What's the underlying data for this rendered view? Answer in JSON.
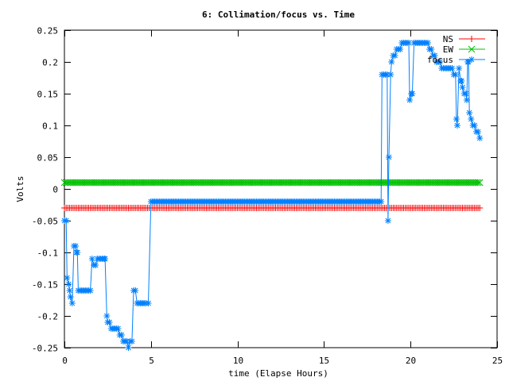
{
  "chart_data": {
    "type": "line",
    "title": "6: Collimation/focus vs. Time",
    "xlabel": "time (Elapse Hours)",
    "ylabel": "Volts",
    "xlim": [
      0,
      25
    ],
    "ylim": [
      -0.25,
      0.25
    ],
    "x_ticks": [
      "0",
      "5",
      "10",
      "15",
      "20",
      "25"
    ],
    "y_ticks": [
      "-0.25",
      "-0.2",
      "-0.15",
      "-0.1",
      "-0.05",
      "0",
      "0.05",
      "0.1",
      "0.15",
      "0.2",
      "0.25"
    ],
    "grid": false,
    "legend_position": "top-right",
    "series": [
      {
        "name": "NS",
        "color": "#ff0000",
        "marker": "plus",
        "constant": true,
        "x_range": [
          0,
          24
        ],
        "y": -0.03
      },
      {
        "name": "EW",
        "color": "#00c000",
        "marker": "cross",
        "constant": true,
        "x_range": [
          0,
          24
        ],
        "y": 0.01
      },
      {
        "name": "focus",
        "color": "#0080ff",
        "marker": "star",
        "points": [
          [
            0.0,
            -0.05
          ],
          [
            0.1,
            -0.05
          ],
          [
            0.15,
            -0.14
          ],
          [
            0.25,
            -0.15
          ],
          [
            0.3,
            -0.16
          ],
          [
            0.35,
            -0.17
          ],
          [
            0.45,
            -0.18
          ],
          [
            0.55,
            -0.09
          ],
          [
            0.65,
            -0.09
          ],
          [
            0.7,
            -0.1
          ],
          [
            0.75,
            -0.1
          ],
          [
            0.8,
            -0.16
          ],
          [
            0.9,
            -0.16
          ],
          [
            1.0,
            -0.16
          ],
          [
            1.1,
            -0.16
          ],
          [
            1.2,
            -0.16
          ],
          [
            1.3,
            -0.16
          ],
          [
            1.4,
            -0.16
          ],
          [
            1.5,
            -0.16
          ],
          [
            1.6,
            -0.11
          ],
          [
            1.7,
            -0.12
          ],
          [
            1.8,
            -0.12
          ],
          [
            1.9,
            -0.11
          ],
          [
            2.0,
            -0.11
          ],
          [
            2.1,
            -0.11
          ],
          [
            2.2,
            -0.11
          ],
          [
            2.3,
            -0.11
          ],
          [
            2.35,
            -0.11
          ],
          [
            2.45,
            -0.2
          ],
          [
            2.5,
            -0.21
          ],
          [
            2.6,
            -0.21
          ],
          [
            2.7,
            -0.22
          ],
          [
            2.8,
            -0.22
          ],
          [
            2.9,
            -0.22
          ],
          [
            3.0,
            -0.22
          ],
          [
            3.1,
            -0.22
          ],
          [
            3.2,
            -0.23
          ],
          [
            3.3,
            -0.23
          ],
          [
            3.4,
            -0.24
          ],
          [
            3.5,
            -0.24
          ],
          [
            3.6,
            -0.24
          ],
          [
            3.7,
            -0.25
          ],
          [
            3.8,
            -0.24
          ],
          [
            3.9,
            -0.24
          ],
          [
            4.0,
            -0.16
          ],
          [
            4.1,
            -0.16
          ],
          [
            4.2,
            -0.18
          ],
          [
            4.3,
            -0.18
          ],
          [
            4.4,
            -0.18
          ],
          [
            4.5,
            -0.18
          ],
          [
            4.6,
            -0.18
          ],
          [
            4.7,
            -0.18
          ],
          [
            4.85,
            -0.18
          ],
          [
            5.0,
            -0.02
          ],
          [
            18.3,
            -0.02
          ],
          [
            18.35,
            0.18
          ],
          [
            18.45,
            0.18
          ],
          [
            18.55,
            0.18
          ],
          [
            18.65,
            0.18
          ],
          [
            18.7,
            -0.05
          ],
          [
            18.75,
            0.05
          ],
          [
            18.85,
            0.18
          ],
          [
            18.9,
            0.2
          ],
          [
            19.0,
            0.21
          ],
          [
            19.1,
            0.21
          ],
          [
            19.2,
            0.22
          ],
          [
            19.3,
            0.22
          ],
          [
            19.4,
            0.22
          ],
          [
            19.5,
            0.23
          ],
          [
            19.6,
            0.23
          ],
          [
            19.7,
            0.23
          ],
          [
            19.8,
            0.23
          ],
          [
            19.9,
            0.23
          ],
          [
            19.95,
            0.14
          ],
          [
            20.05,
            0.15
          ],
          [
            20.1,
            0.15
          ],
          [
            20.2,
            0.23
          ],
          [
            20.3,
            0.23
          ],
          [
            20.4,
            0.23
          ],
          [
            20.5,
            0.23
          ],
          [
            20.6,
            0.23
          ],
          [
            20.7,
            0.23
          ],
          [
            20.8,
            0.23
          ],
          [
            20.9,
            0.23
          ],
          [
            21.0,
            0.23
          ],
          [
            21.1,
            0.22
          ],
          [
            21.2,
            0.22
          ],
          [
            21.3,
            0.21
          ],
          [
            21.4,
            0.21
          ],
          [
            21.5,
            0.2
          ],
          [
            21.6,
            0.2
          ],
          [
            21.7,
            0.2
          ],
          [
            21.8,
            0.19
          ],
          [
            21.9,
            0.19
          ],
          [
            22.0,
            0.19
          ],
          [
            22.1,
            0.19
          ],
          [
            22.2,
            0.19
          ],
          [
            22.3,
            0.19
          ],
          [
            22.4,
            0.19
          ],
          [
            22.5,
            0.18
          ],
          [
            22.6,
            0.18
          ],
          [
            22.65,
            0.11
          ],
          [
            22.7,
            0.1
          ],
          [
            22.8,
            0.19
          ],
          [
            22.9,
            0.17
          ],
          [
            22.95,
            0.17
          ],
          [
            23.0,
            0.16
          ],
          [
            23.1,
            0.15
          ],
          [
            23.2,
            0.15
          ],
          [
            23.25,
            0.14
          ],
          [
            23.3,
            0.2
          ],
          [
            23.35,
            0.2
          ],
          [
            23.4,
            0.12
          ],
          [
            23.5,
            0.11
          ],
          [
            23.6,
            0.1
          ],
          [
            23.7,
            0.1
          ],
          [
            23.8,
            0.09
          ],
          [
            23.9,
            0.09
          ],
          [
            24.0,
            0.08
          ]
        ]
      }
    ]
  }
}
